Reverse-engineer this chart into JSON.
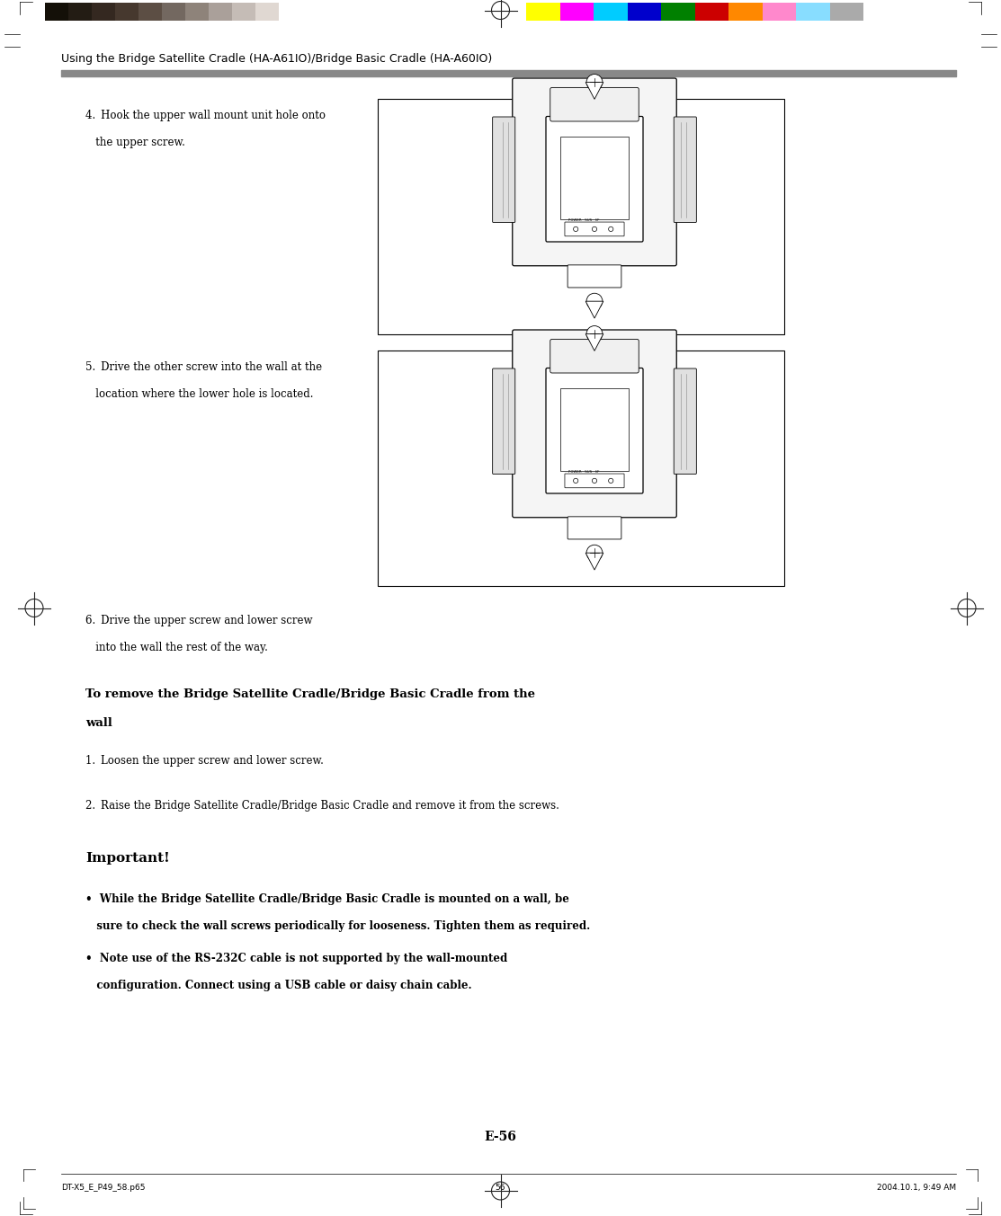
{
  "page_width": 11.13,
  "page_height": 13.53,
  "bg_color": "#ffffff",
  "header_title": "Using the Bridge Satellite Cradle (HA-A61IO)/Bridge Basic Cradle (HA-A60IO)",
  "header_title_fontsize": 9.0,
  "header_line_color": "#777777",
  "color_bar_blacks": [
    "#141008",
    "#231c14",
    "#342820",
    "#46382e",
    "#5c4e44",
    "#736860",
    "#8e837a",
    "#aaa09a",
    "#c5bcb6",
    "#e0d8d2"
  ],
  "color_bar_colors": [
    "#ffff00",
    "#ff00ff",
    "#00ccff",
    "#0000cc",
    "#008000",
    "#cc0000",
    "#ff8800",
    "#ff88cc",
    "#88ddff",
    "#aaaaaa"
  ],
  "footer_left": "DT-X5_E_P49_58.p65",
  "footer_center": "56",
  "footer_right": "2004.10.1, 9:49 AM",
  "page_number": "E-56",
  "crosshair_color": "#222222",
  "text_color": "#000000",
  "body_fontsize": 8.5,
  "step4_line1": "4. Hook the upper wall mount unit hole onto",
  "step4_line2": "   the upper screw.",
  "step5_line1": "5. Drive the other screw into the wall at the",
  "step5_line2": "   location where the lower hole is located.",
  "step6_line1": "6. Drive the upper screw and lower screw",
  "step6_line2": "   into the wall the rest of the way.",
  "remove_heading_line1": "To remove the Bridge Satellite Cradle/Bridge Basic Cradle from the",
  "remove_heading_line2": "wall",
  "remove1": "1. Loosen the upper screw and lower screw.",
  "remove2": "2. Raise the Bridge Satellite Cradle/Bridge Basic Cradle and remove it from the screws.",
  "important_heading": "Important!",
  "bullet1_line1": "•  While the Bridge Satellite Cradle/Bridge Basic Cradle is mounted on a wall, be",
  "bullet1_line2": "   sure to check the wall screws periodically for looseness. Tighten them as required.",
  "bullet2_line1": "•  Note use of the RS-232C cable is not supported by the wall-mounted",
  "bullet2_line2": "   configuration. Connect using a USB cable or daisy chain cable."
}
